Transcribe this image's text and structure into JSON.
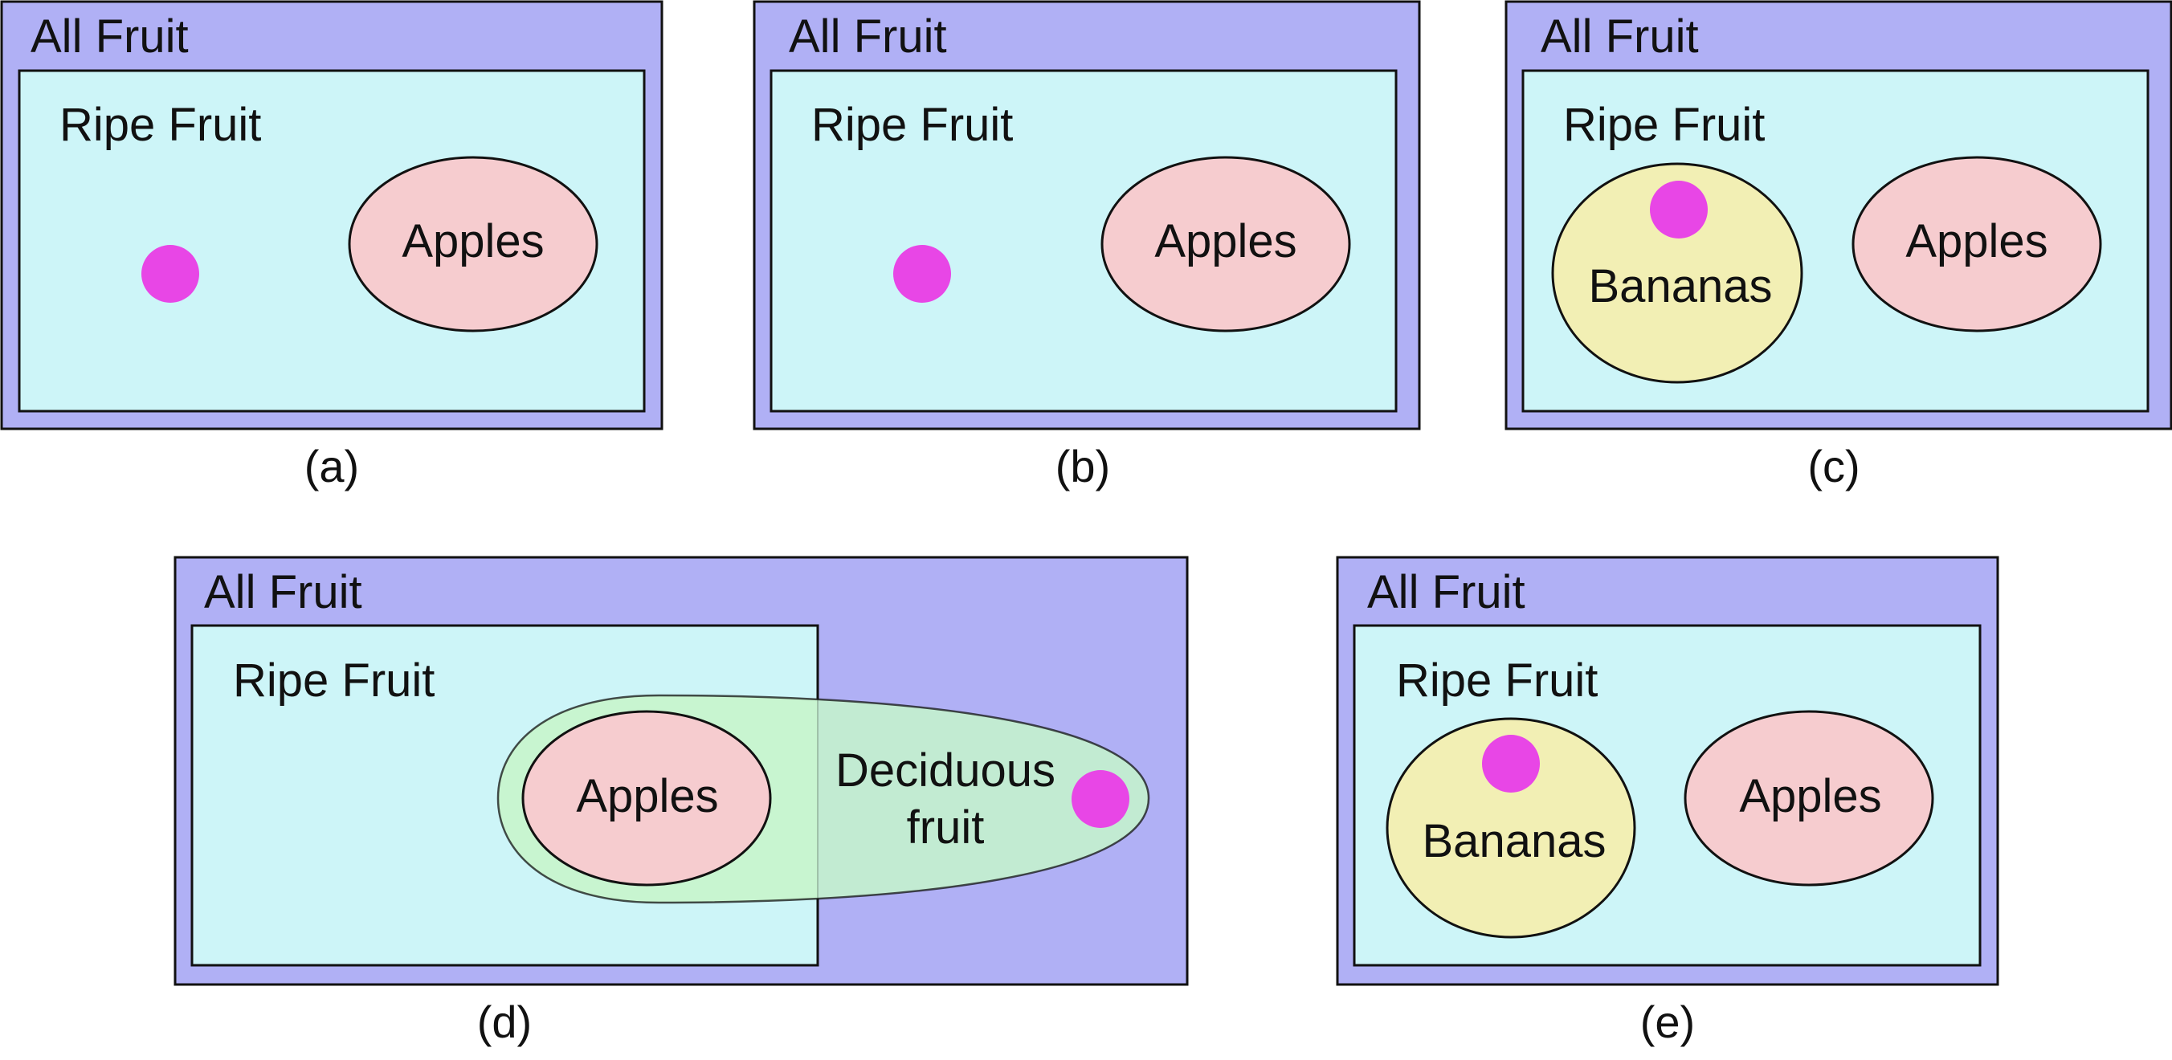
{
  "colors": {
    "all_fruit_fill": "#b0b0f5",
    "ripe_fruit_fill": "#cdf5f8",
    "apples_fill": "#f6cccf",
    "bananas_fill": "#f2efb4",
    "deciduous_fill": "#c2ebd2",
    "deciduous_overlap_fill": "#c8f5d0",
    "dot_fill": "#e846e6",
    "stroke": "#111111"
  },
  "panels": {
    "a": {
      "all_fruit": "All Fruit",
      "ripe_fruit": "Ripe Fruit",
      "apples": "Apples",
      "caption": "(a)"
    },
    "b": {
      "all_fruit": "All Fruit",
      "ripe_fruit": "Ripe Fruit",
      "apples": "Apples",
      "caption": "(b)"
    },
    "c": {
      "all_fruit": "All Fruit",
      "ripe_fruit": "Ripe Fruit",
      "apples": "Apples",
      "bananas": "Bananas",
      "caption": "(c)"
    },
    "d": {
      "all_fruit": "All Fruit",
      "ripe_fruit": "Ripe Fruit",
      "apples": "Apples",
      "deciduous_line1": "Deciduous",
      "deciduous_line2": "fruit",
      "caption": "(d)"
    },
    "e": {
      "all_fruit": "All Fruit",
      "ripe_fruit": "Ripe Fruit",
      "apples": "Apples",
      "bananas": "Bananas",
      "caption": "(e)"
    }
  }
}
